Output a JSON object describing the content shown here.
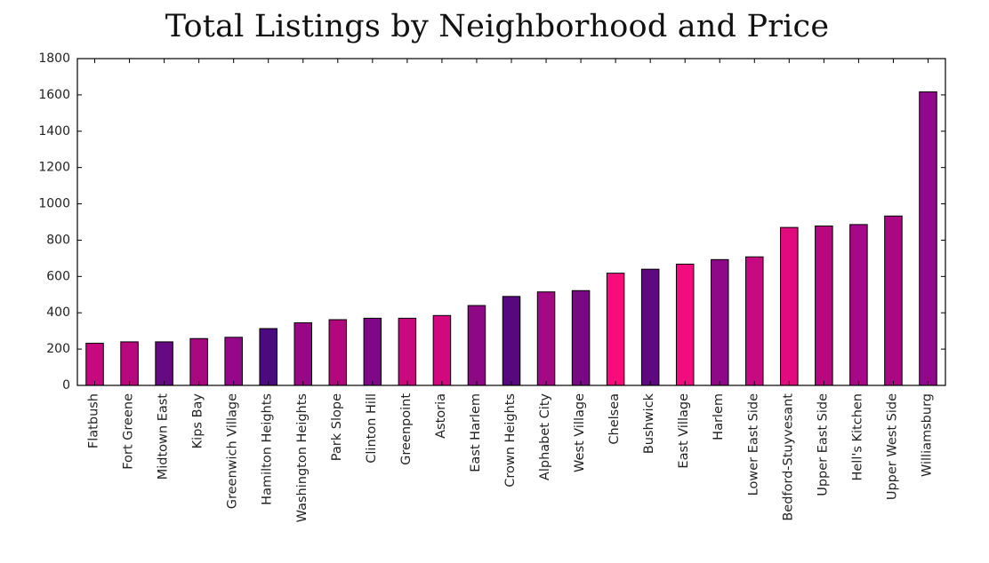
{
  "chart_data": {
    "type": "bar",
    "title": "Total Listings by Neighborhood and Price",
    "xlabel": "",
    "ylabel": "",
    "ylim": [
      0,
      1800
    ],
    "yticks": [
      0,
      200,
      400,
      600,
      800,
      1000,
      1200,
      1400,
      1600,
      1800
    ],
    "grid": false,
    "legend": "none",
    "categories": [
      "Flatbush",
      "Fort Greene",
      "Midtown East",
      "Kips Bay",
      "Greenwich Village",
      "Hamilton Heights",
      "Washington Heights",
      "Park Slope",
      "Clinton Hill",
      "Greenpoint",
      "Astoria",
      "East Harlem",
      "Crown Heights",
      "Alphabet City",
      "West Village",
      "Chelsea",
      "Bushwick",
      "East Village",
      "Harlem",
      "Lower East Side",
      "Bedford-Stuyvesant",
      "Upper East Side",
      "Hell's Kitchen",
      "Upper West Side",
      "Williamsburg"
    ],
    "values": [
      232,
      240,
      240,
      258,
      265,
      313,
      345,
      362,
      370,
      370,
      385,
      440,
      490,
      515,
      522,
      618,
      640,
      668,
      693,
      708,
      870,
      878,
      886,
      933,
      1617
    ],
    "colors": [
      "#c8087e",
      "#b8087e",
      "#650a82",
      "#a80880",
      "#95088a",
      "#4b0a80",
      "#990884",
      "#b2087e",
      "#7e0888",
      "#c80a80",
      "#d2087e",
      "#8c0884",
      "#58087e",
      "#a50884",
      "#780884",
      "#f70c7c",
      "#5f0882",
      "#f20c7e",
      "#8e0888",
      "#c60a82",
      "#e20a7f",
      "#b8087e",
      "#a50888",
      "#aa0882",
      "#92088a"
    ]
  }
}
